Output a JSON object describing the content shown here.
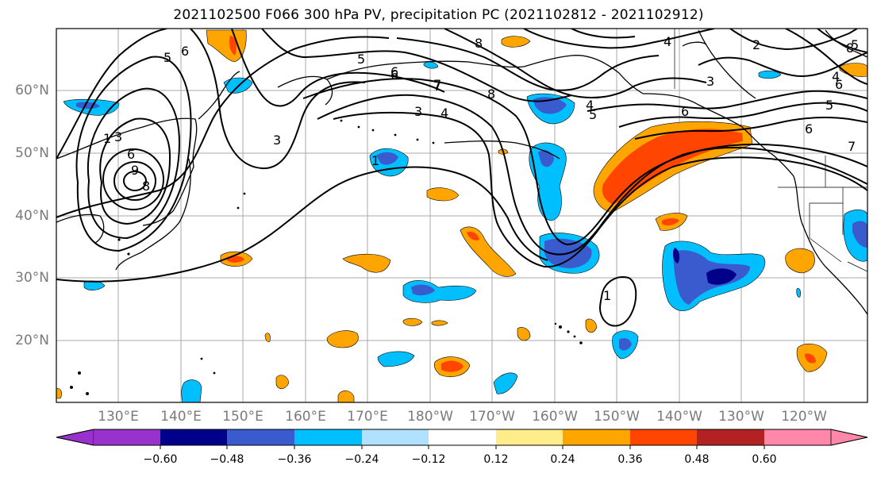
{
  "title": "2021102500 F066 300 hPa PV, precipitation PC (2021102812 - 2021102912)",
  "lat_labels": [
    "60°N",
    "50°N",
    "40°N",
    "30°N",
    "20°N"
  ],
  "lon_labels": [
    "130°E",
    "140°E",
    "150°E",
    "160°E",
    "170°E",
    "180°W",
    "170°W",
    "160°W",
    "150°W",
    "140°W",
    "130°W",
    "120°W"
  ],
  "contour_labels": [
    "5",
    "6",
    "8",
    "1",
    "3",
    "6",
    "9",
    "3",
    "4",
    "5",
    "6",
    "7",
    "8",
    "8",
    "4",
    "5",
    "6",
    "4",
    "5",
    "6",
    "7",
    "1",
    "3",
    "6",
    "8",
    "4",
    "2",
    "3",
    "5",
    "6",
    "7",
    "1"
  ],
  "colorbar": {
    "ticks": [
      "−0.60",
      "−0.48",
      "−0.36",
      "−0.24",
      "−0.12",
      "0.12",
      "0.24",
      "0.36",
      "0.48",
      "0.60"
    ],
    "colors": {
      "under": "#9932cc",
      "bins": [
        "#00008b",
        "#3a5bcd",
        "#00bfff",
        "#b0e2ff",
        "#ffffff",
        "#ffec8b",
        "#ffa500",
        "#ff4500",
        "#b22222"
      ],
      "over": "#ff88aa"
    }
  },
  "colors": {
    "grid": "#a8a8a8",
    "contour": "#000000",
    "axis_label": "#7a7a7a"
  }
}
